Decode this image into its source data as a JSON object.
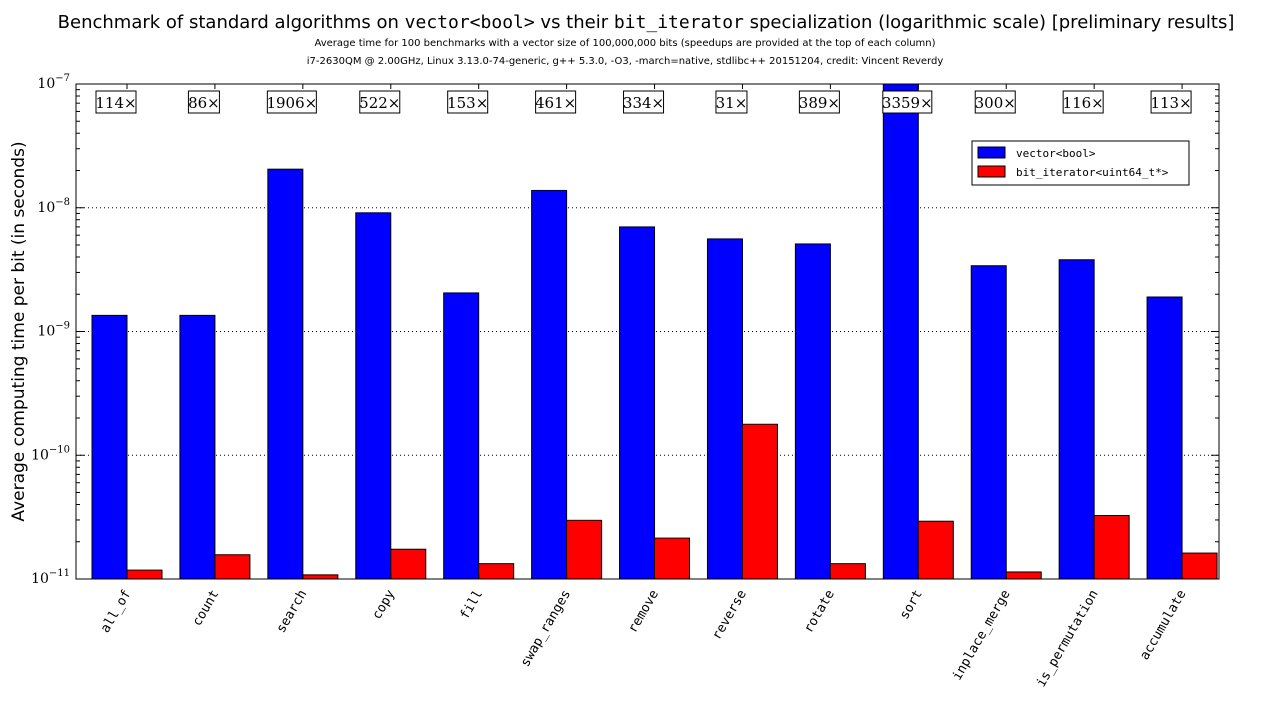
{
  "title": {
    "part1": "Benchmark of standard algorithms on ",
    "code1": "vector<bool>",
    "part2": " vs their ",
    "code2": "bit_iterator",
    "part3": " specialization (logarithmic scale) [preliminary results]"
  },
  "subtitle_line1": "Average time for 100 benchmarks with a vector size of 100,000,000 bits (speedups are provided at the top of each column)",
  "subtitle_line2": "i7-2630QM @ 2.00GHz, Linux 3.13.0-74-generic, g++ 5.3.0, -O3, -march=native, stdlibc++ 20151204, credit: Vincent Reverdy",
  "chart_data": {
    "type": "bar",
    "ylabel": "Average computing time per bit (in seconds)",
    "xlabel": "",
    "yscale": "log",
    "ylim_exponent": [
      -11,
      -7
    ],
    "ytick_exponents": [
      -11,
      -10,
      -9,
      -8,
      -7
    ],
    "grid": "horizontal dotted",
    "legend_placement": "top-right",
    "categories": [
      "all_of",
      "count",
      "search",
      "copy",
      "fill",
      "swap_ranges",
      "remove",
      "reverse",
      "rotate",
      "sort",
      "inplace_merge",
      "is_permutation",
      "accumulate"
    ],
    "speedups": [
      "114×",
      "86×",
      "1906×",
      "522×",
      "153×",
      "461×",
      "334×",
      "31×",
      "389×",
      "3359×",
      "300×",
      "116×",
      "113×"
    ],
    "series": [
      {
        "name": "vector<bool>",
        "color": "#0000ff",
        "values": [
          1.35e-09,
          1.35e-09,
          2.05e-08,
          9.1e-09,
          2.05e-09,
          1.38e-08,
          7e-09,
          5.6e-09,
          5.1e-09,
          1e-07,
          3.4e-09,
          3.8e-09,
          1.9e-09
        ]
      },
      {
        "name": "bit_iterator<uint64_t*>",
        "color": "#ff0000",
        "values": [
          1.18e-11,
          1.57e-11,
          1.08e-11,
          1.74e-11,
          1.33e-11,
          2.98e-11,
          2.14e-11,
          1.78e-10,
          1.33e-11,
          2.93e-11,
          1.14e-11,
          3.26e-11,
          1.62e-11
        ]
      }
    ]
  }
}
